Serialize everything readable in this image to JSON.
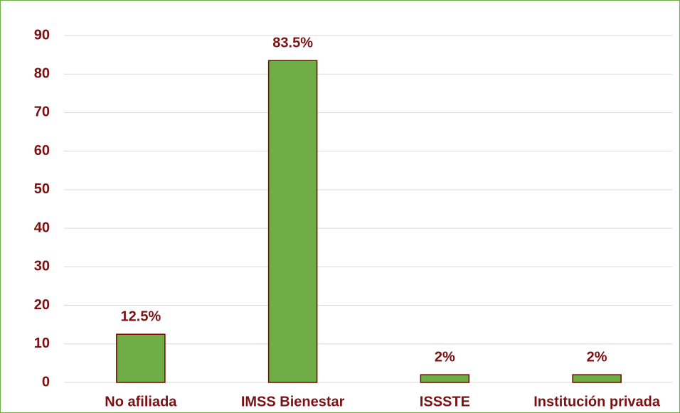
{
  "chart_data": {
    "type": "bar",
    "categories": [
      "No afiliada",
      "IMSS Bienestar",
      "ISSSTE",
      "Institución privada"
    ],
    "values": [
      12.5,
      83.5,
      2,
      2
    ],
    "value_labels": [
      "12.5%",
      "83.5%",
      "2%",
      "2%"
    ],
    "color": "#70ad47",
    "ylim": [
      0,
      90
    ],
    "yticks": [
      0,
      10,
      20,
      30,
      40,
      50,
      60,
      70,
      80,
      90
    ],
    "grid": true
  }
}
